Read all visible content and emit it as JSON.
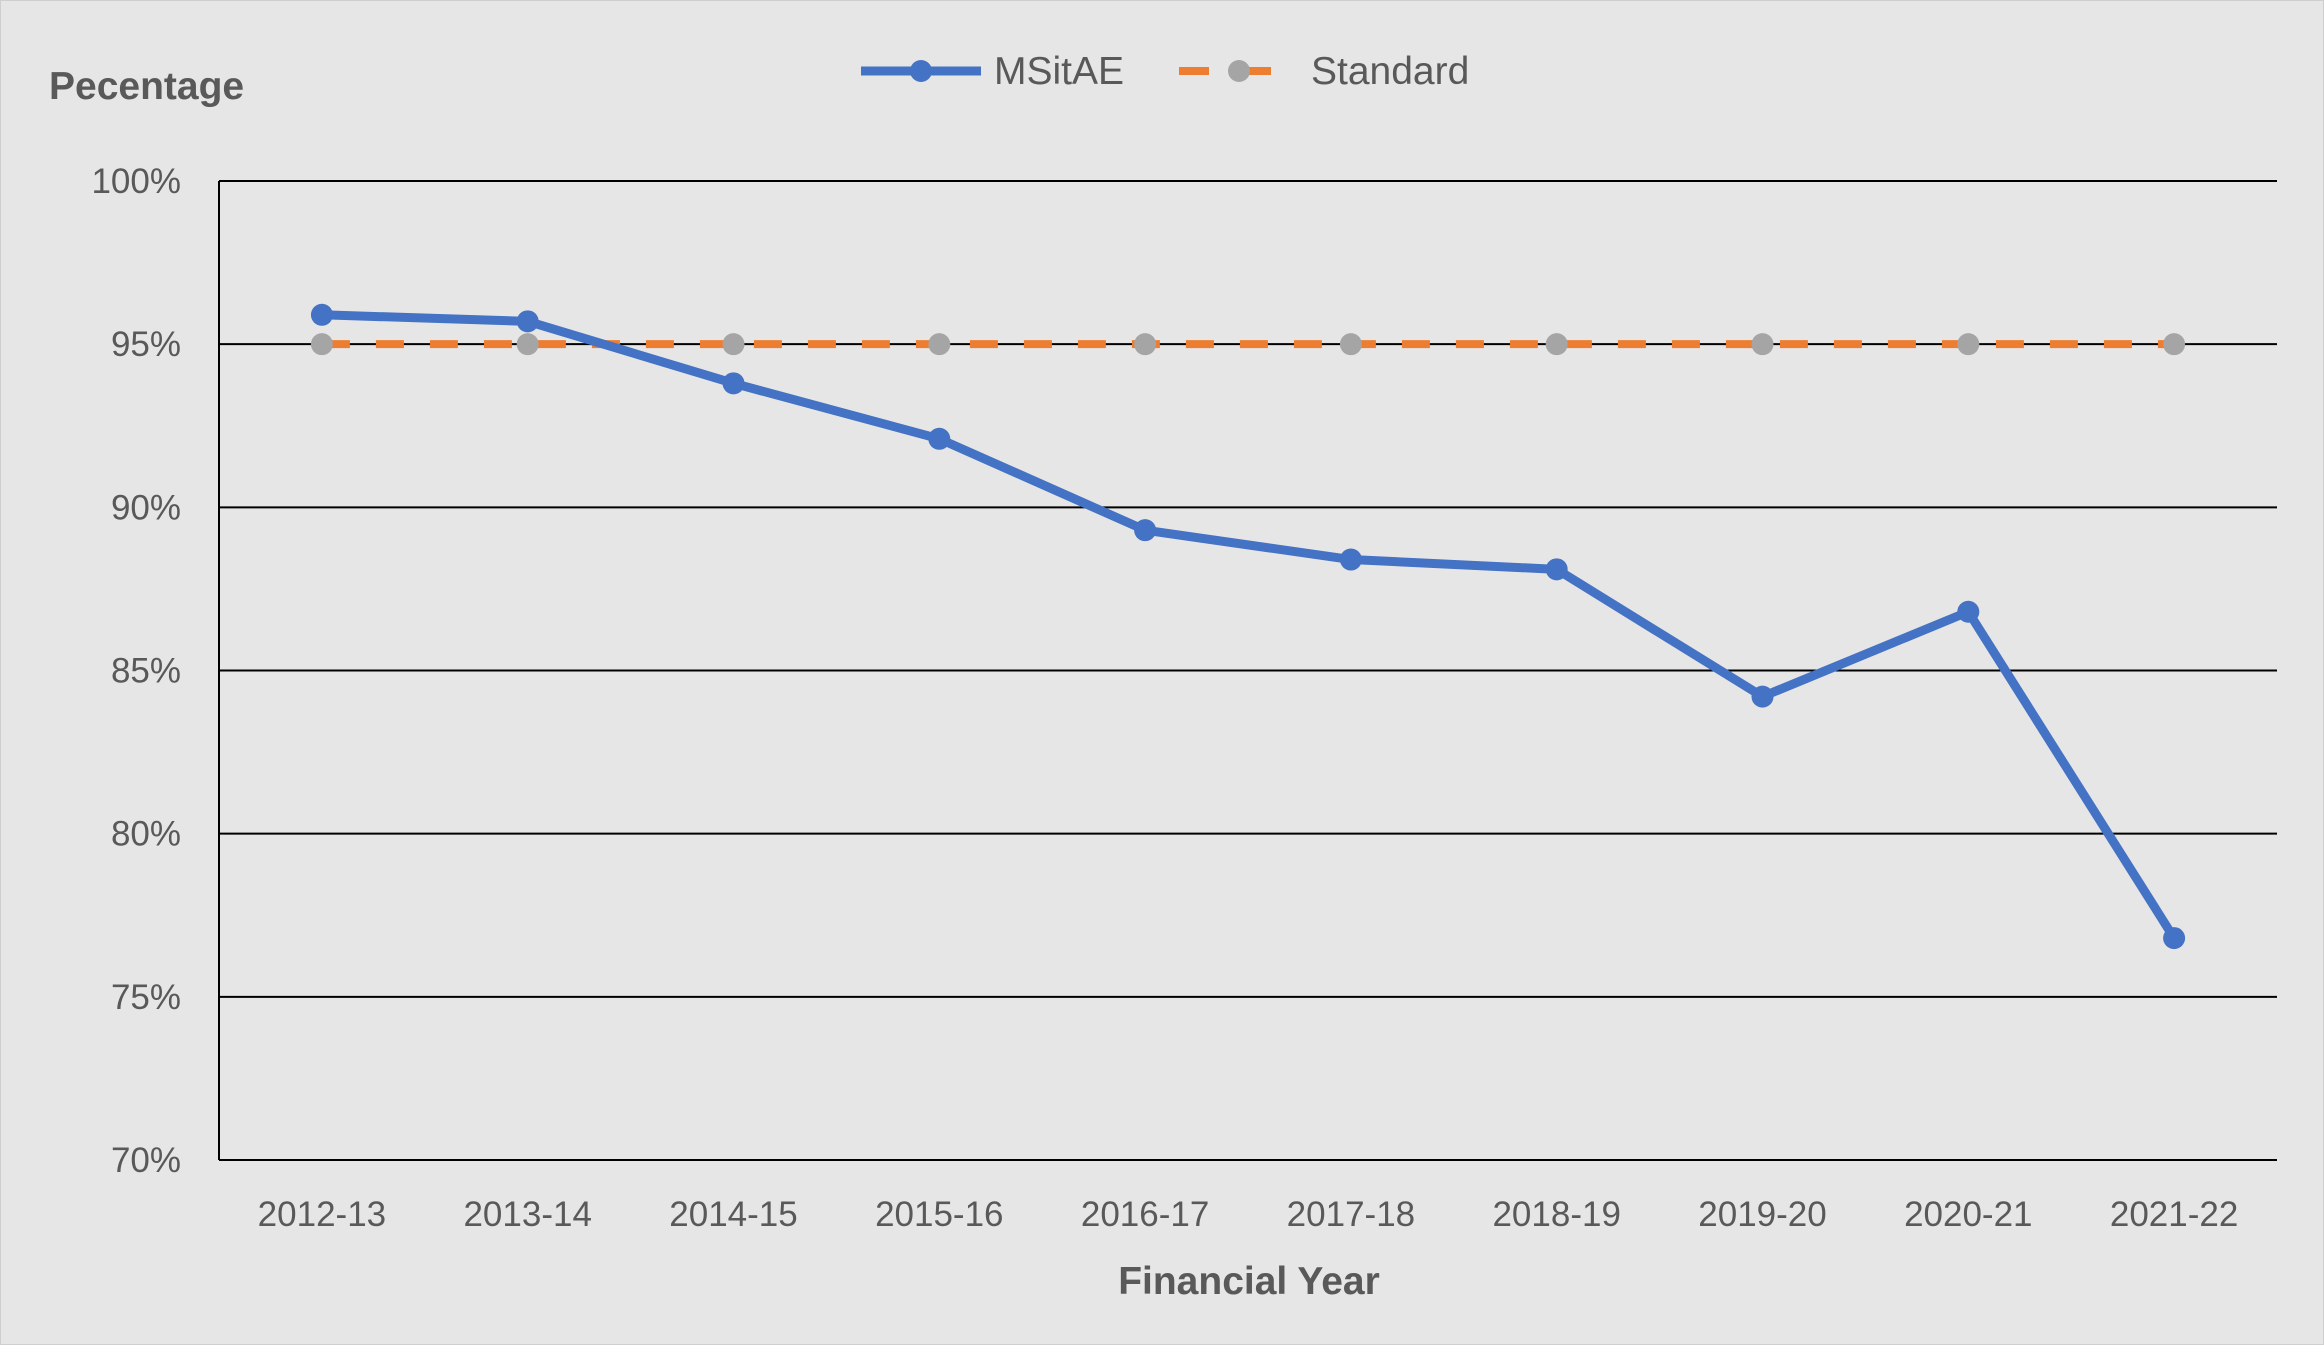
{
  "chart_data": {
    "type": "line",
    "title": "",
    "xlabel": "Financial Year",
    "ylabel": "Pecentage",
    "categories": [
      "2012-13",
      "2013-14",
      "2014-15",
      "2015-16",
      "2016-17",
      "2017-18",
      "2018-19",
      "2019-20",
      "2020-21",
      "2021-22"
    ],
    "ylim": [
      0.7,
      1.0
    ],
    "yticks": [
      0.7,
      0.75,
      0.8,
      0.85,
      0.9,
      0.95,
      1.0
    ],
    "ytick_labels": [
      "70%",
      "75%",
      "80%",
      "85%",
      "90%",
      "95%",
      "100%"
    ],
    "grid": true,
    "legend_position": "top-center",
    "series": [
      {
        "name": "MSitAE",
        "values": [
          0.959,
          0.957,
          0.938,
          0.921,
          0.893,
          0.884,
          0.881,
          0.842,
          0.868,
          0.768
        ],
        "color": "#4472c4",
        "line_style": "solid",
        "marker_color": "#4472c4"
      },
      {
        "name": "Standard",
        "values": [
          0.95,
          0.95,
          0.95,
          0.95,
          0.95,
          0.95,
          0.95,
          0.95,
          0.95,
          0.95
        ],
        "color": "#ed7d31",
        "line_style": "dashed",
        "marker_color": "#a5a5a5"
      }
    ]
  }
}
